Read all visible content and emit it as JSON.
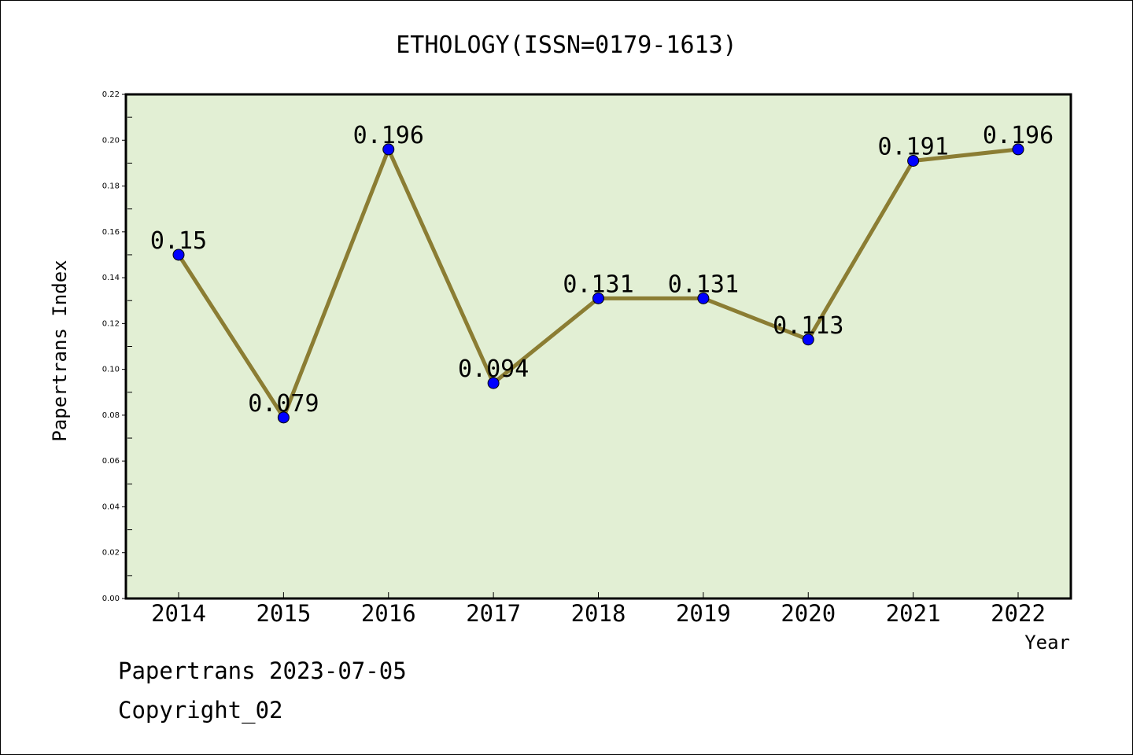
{
  "chart_data": {
    "type": "line",
    "title": "ETHOLOGY(ISSN=0179-1613)",
    "xlabel": "Year",
    "ylabel": "Papertrans Index",
    "categories": [
      "2014",
      "2015",
      "2016",
      "2017",
      "2018",
      "2019",
      "2020",
      "2021",
      "2022"
    ],
    "values": [
      0.15,
      0.079,
      0.196,
      0.094,
      0.131,
      0.131,
      0.113,
      0.191,
      0.196
    ],
    "data_labels": [
      "0.15",
      "0.079",
      "0.196",
      "0.094",
      "0.131",
      "0.131",
      "0.113",
      "0.191",
      "0.196"
    ],
    "ylim": [
      0,
      0.22
    ],
    "yticks": [
      "0.00",
      "0.02",
      "0.04",
      "0.06",
      "0.08",
      "0.10",
      "0.12",
      "0.14",
      "0.16",
      "0.18",
      "0.20",
      "0.22"
    ],
    "grid": false,
    "colors": {
      "plot_background": "#e2efd4",
      "line": "#8b7d33",
      "marker": "#0000ff"
    }
  },
  "footer": {
    "date_line": "Papertrans 2023-07-05",
    "copyright_line": "Copyright_02"
  }
}
